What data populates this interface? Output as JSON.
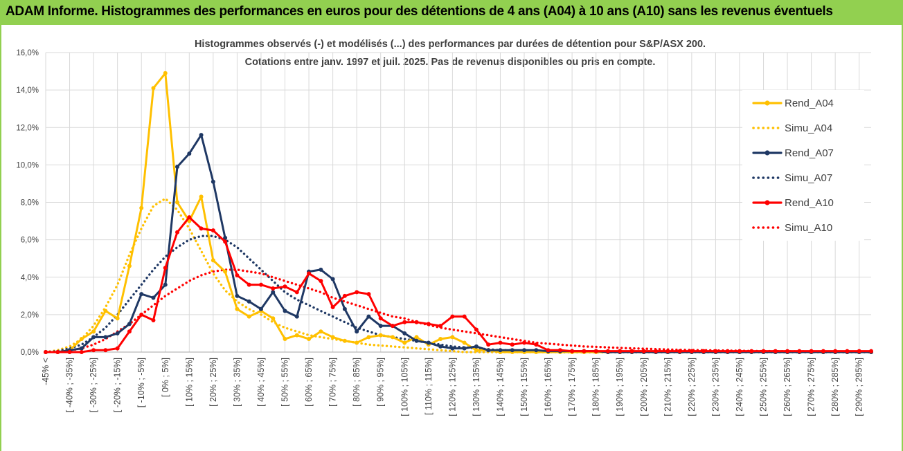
{
  "header": {
    "title": "ADAM Informe. Histogrammes des performances en euros pour des détentions de 4 ans (A04) à 10 ans (A10) sans les revenus éventuels"
  },
  "colors": {
    "header_bg": "#92d050",
    "a04": "#ffc000",
    "a07": "#1f3864",
    "a10": "#ff0000",
    "grid": "#d9d9d9"
  },
  "chart_data": {
    "type": "line",
    "title": "Histogrammes observés (-) et modélisés (...) des performances par durées de détention pour S&P/ASX 200.",
    "subtitle": "Cotations entre janv. 1997 et juil. 2025. Pas de revenus disponibles ou pris en compte.",
    "xlabel": "",
    "ylabel": "",
    "ylim": [
      0,
      16
    ],
    "y_ticks": [
      "0,0%",
      "2,0%",
      "4,0%",
      "6,0%",
      "8,0%",
      "10,0%",
      "12,0%",
      "14,0%",
      "16,0%"
    ],
    "grid": true,
    "legend_position": "right",
    "x_tick_labels": [
      "-45% <",
      "[ -40% ; -35%]",
      "[ -30% ; -25%]",
      "[ -20% ; -15%]",
      "[ -10% ; -5%]",
      "[ 0% ; 5%]",
      "[ 10% ; 15%]",
      "[ 20% ; 25%]",
      "[ 30% ; 35%]",
      "[ 40% ; 45%]",
      "[ 50% ; 55%]",
      "[ 60% ; 65%]",
      "[ 70% ; 75%]",
      "[ 80% ; 85%]",
      "[ 90% ; 95%]",
      "[ 100% ; 105%]",
      "[ 110% ; 115%]",
      "[ 120% ; 125%]",
      "[ 130% ; 135%]",
      "[ 140% ; 145%]",
      "[ 150% ; 155%]",
      "[ 160% ; 165%]",
      "[ 170% ; 175%]",
      "[ 180% ; 185%]",
      "[ 190% ; 195%]",
      "[ 200% ; 205%]",
      "[ 210% ; 215%]",
      "[ 220% ; 225%]",
      "[ 230% ; 235%]",
      "[ 240% ; 245%]",
      "[ 250% ; 255%]",
      "[ 260% ; 265%]",
      "[ 270% ; 275%]",
      "[ 280% ; 285%]",
      "[ 290% ; 295%]"
    ],
    "series": [
      {
        "name": "Rend_A04",
        "color": "#ffc000",
        "style": "solid",
        "values": [
          0,
          0,
          0.1,
          0.7,
          1.1,
          2.2,
          1.8,
          4.6,
          7.7,
          14.1,
          14.9,
          8.0,
          7.0,
          8.3,
          4.9,
          4.3,
          2.3,
          1.9,
          2.2,
          1.8,
          0.7,
          0.9,
          0.7,
          1.1,
          0.8,
          0.6,
          0.5,
          0.8,
          0.9,
          0.8,
          0.5,
          0.8,
          0.4,
          0.7,
          0.8,
          0.5,
          0.1,
          0.1,
          0,
          0,
          0,
          0,
          0,
          0,
          0,
          0,
          0,
          0,
          0,
          0,
          0,
          0,
          0,
          0,
          0,
          0,
          0,
          0,
          0,
          0,
          0,
          0,
          0,
          0,
          0,
          0,
          0,
          0,
          0,
          0
        ]
      },
      {
        "name": "Simu_A04",
        "color": "#ffc000",
        "style": "dotted",
        "values": [
          0,
          0.1,
          0.3,
          0.7,
          1.4,
          2.4,
          3.6,
          5.2,
          6.6,
          7.8,
          8.2,
          7.6,
          6.6,
          5.4,
          4.2,
          3.3,
          2.7,
          2.3,
          2.0,
          1.6,
          1.3,
          1.1,
          0.9,
          0.8,
          0.7,
          0.6,
          0.5,
          0.4,
          0.35,
          0.3,
          0.25,
          0.2,
          0.15,
          0.1,
          0.05,
          0,
          0,
          0,
          0,
          0,
          0,
          0,
          0,
          0,
          0,
          0,
          0,
          0,
          0,
          0,
          0,
          0,
          0,
          0,
          0,
          0,
          0,
          0,
          0,
          0,
          0,
          0,
          0,
          0,
          0,
          0,
          0,
          0,
          0,
          0
        ]
      },
      {
        "name": "Rend_A07",
        "color": "#1f3864",
        "style": "solid",
        "values": [
          0,
          0,
          0.1,
          0.2,
          0.8,
          0.8,
          1.0,
          1.5,
          3.1,
          2.9,
          3.6,
          9.9,
          10.6,
          11.6,
          9.1,
          6.1,
          3.0,
          2.7,
          2.3,
          3.2,
          2.2,
          1.9,
          4.3,
          4.4,
          3.9,
          2.3,
          1.1,
          1.9,
          1.4,
          1.4,
          1.0,
          0.6,
          0.5,
          0.3,
          0.2,
          0.2,
          0.3,
          0.1,
          0.1,
          0.1,
          0.1,
          0.1,
          0.05,
          0.05,
          0.05,
          0.05,
          0.05,
          0,
          0,
          0,
          0,
          0,
          0,
          0,
          0,
          0,
          0,
          0,
          0,
          0,
          0,
          0,
          0,
          0,
          0,
          0,
          0,
          0,
          0,
          0
        ]
      },
      {
        "name": "Simu_A07",
        "color": "#1f3864",
        "style": "dotted",
        "values": [
          0,
          0.05,
          0.2,
          0.4,
          0.8,
          1.3,
          2.0,
          2.8,
          3.6,
          4.4,
          5.1,
          5.6,
          6.0,
          6.2,
          6.2,
          6.0,
          5.6,
          5.0,
          4.4,
          3.8,
          3.2,
          2.8,
          2.5,
          2.2,
          1.9,
          1.6,
          1.3,
          1.1,
          0.9,
          0.8,
          0.7,
          0.6,
          0.5,
          0.4,
          0.3,
          0.25,
          0.2,
          0.15,
          0.1,
          0.1,
          0.05,
          0.05,
          0.05,
          0,
          0,
          0,
          0,
          0,
          0,
          0,
          0,
          0,
          0,
          0,
          0,
          0,
          0,
          0,
          0,
          0,
          0,
          0,
          0,
          0,
          0,
          0,
          0,
          0,
          0,
          0
        ]
      },
      {
        "name": "Rend_A10",
        "color": "#ff0000",
        "style": "solid",
        "values": [
          0,
          0,
          0,
          0,
          0.1,
          0.1,
          0.2,
          1.1,
          2.0,
          1.7,
          4.5,
          6.4,
          7.2,
          6.6,
          6.5,
          5.9,
          4.1,
          3.6,
          3.6,
          3.4,
          3.5,
          3.2,
          4.2,
          3.8,
          2.4,
          3.0,
          3.2,
          3.1,
          1.8,
          1.4,
          1.6,
          1.6,
          1.5,
          1.4,
          1.9,
          1.9,
          1.2,
          0.4,
          0.5,
          0.4,
          0.5,
          0.4,
          0.1,
          0.1,
          0.05,
          0.05,
          0.05,
          0.05,
          0.05,
          0.05,
          0.05,
          0.05,
          0.05,
          0.05,
          0.05,
          0.05,
          0.05,
          0.05,
          0.05,
          0.05,
          0.05,
          0.05,
          0.05,
          0.05,
          0.05,
          0.05,
          0.05,
          0.05,
          0.05,
          0.05
        ]
      },
      {
        "name": "Simu_A10",
        "color": "#ff0000",
        "style": "dotted",
        "values": [
          0,
          0.02,
          0.08,
          0.2,
          0.4,
          0.7,
          1.1,
          1.5,
          2.0,
          2.5,
          3.0,
          3.4,
          3.8,
          4.1,
          4.3,
          4.4,
          4.4,
          4.3,
          4.2,
          4.0,
          3.8,
          3.6,
          3.4,
          3.2,
          2.9,
          2.7,
          2.5,
          2.3,
          2.1,
          1.9,
          1.8,
          1.6,
          1.45,
          1.3,
          1.2,
          1.1,
          1.0,
          0.9,
          0.8,
          0.7,
          0.6,
          0.5,
          0.45,
          0.4,
          0.35,
          0.3,
          0.28,
          0.25,
          0.22,
          0.2,
          0.18,
          0.16,
          0.14,
          0.12,
          0.11,
          0.1,
          0.09,
          0.08,
          0.07,
          0.06,
          0.05,
          0.05,
          0.04,
          0.04,
          0.03,
          0.03,
          0.03,
          0.02,
          0.02,
          0.02
        ]
      }
    ]
  }
}
